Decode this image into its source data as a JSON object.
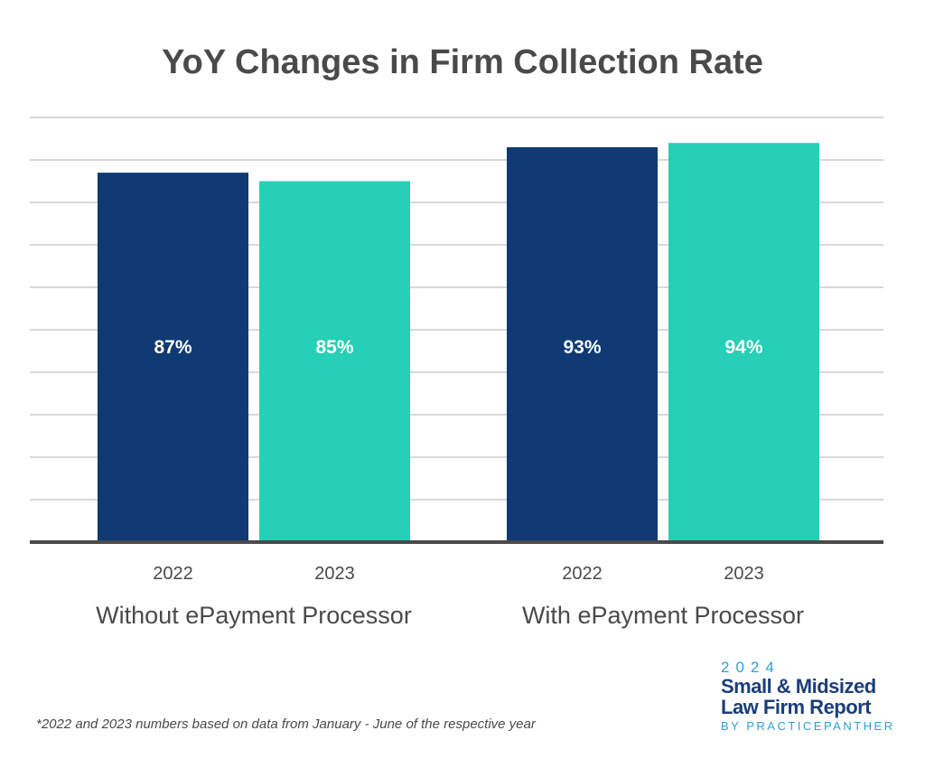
{
  "chart_data": {
    "type": "bar",
    "title": "YoY Changes in Firm Collection Rate",
    "groups": [
      {
        "label": "Without ePayment Processor",
        "bars": [
          {
            "year": "2022",
            "value": 87,
            "label": "87%"
          },
          {
            "year": "2023",
            "value": 85,
            "label": "85%"
          }
        ]
      },
      {
        "label": "With ePayment Processor",
        "bars": [
          {
            "year": "2022",
            "value": 93,
            "label": "93%"
          },
          {
            "year": "2023",
            "value": 94,
            "label": "94%"
          }
        ]
      }
    ],
    "series_colors": {
      "2022": "#0f3a73",
      "2023": "#27cfb6"
    },
    "ylim": [
      0,
      100
    ],
    "grid": true,
    "xlabel": "",
    "ylabel": ""
  },
  "footnote": "*2022 and 2023 numbers based on data from January - June of the respective year",
  "branding": {
    "year": "2024",
    "title_line1": "Small & Midsized",
    "title_line2": "Law Firm Report",
    "byline": "BY PRACTICEPANTHER"
  },
  "colors": {
    "text": "#4a4a4a",
    "grid": "#d9d9d9",
    "axis": "#4a4a4a",
    "brand_blue": "#1b3e78",
    "brand_accent": "#2ea1d6"
  }
}
